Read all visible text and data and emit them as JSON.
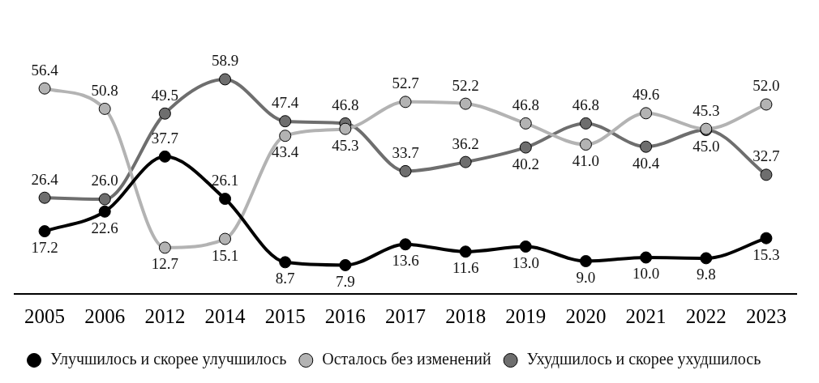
{
  "chart_data": {
    "type": "line",
    "categories": [
      "2005",
      "2006",
      "2012",
      "2014",
      "2015",
      "2016",
      "2017",
      "2018",
      "2019",
      "2020",
      "2021",
      "2022",
      "2023"
    ],
    "series": [
      {
        "name": "Улучшилось и скорее улучшилось",
        "color": "#000000",
        "values": [
          17.2,
          22.6,
          37.7,
          26.1,
          8.7,
          7.9,
          13.6,
          11.6,
          13.0,
          9.0,
          10.0,
          9.8,
          15.3
        ],
        "value_labels": [
          "17.2",
          "22.6",
          "37.7",
          "26.1",
          "8.7",
          "7.9",
          "13.6",
          "11.6",
          "13.0",
          "9.0",
          "10.0",
          "9.8",
          "15.3"
        ]
      },
      {
        "name": "Осталось без изменений",
        "color": "#b3b3b3",
        "values": [
          56.4,
          50.8,
          12.7,
          15.1,
          43.4,
          45.3,
          52.7,
          52.2,
          46.8,
          41.0,
          49.6,
          45.3,
          52.0
        ],
        "value_labels": [
          "56.4",
          "50.8",
          "12.7",
          "15.1",
          "43.4",
          "45.3",
          "52.7",
          "52.2",
          "46.8",
          "41.0",
          "49.6",
          "45.3",
          "52.0"
        ]
      },
      {
        "name": "Ухудшилось и скорее ухудшилось",
        "color": "#6e6e6e",
        "values": [
          26.4,
          26.0,
          49.5,
          58.9,
          47.4,
          46.8,
          33.7,
          36.2,
          40.2,
          46.8,
          40.4,
          45.0,
          32.7
        ],
        "value_labels": [
          "26.4",
          "26.0",
          "49.5",
          "58.9",
          "47.4",
          "46.8",
          "33.7",
          "36.2",
          "40.2",
          "46.8",
          "40.4",
          "45.0",
          "32.7"
        ]
      }
    ],
    "legend": "bottom",
    "marker": "circle",
    "line_style": "solid"
  }
}
